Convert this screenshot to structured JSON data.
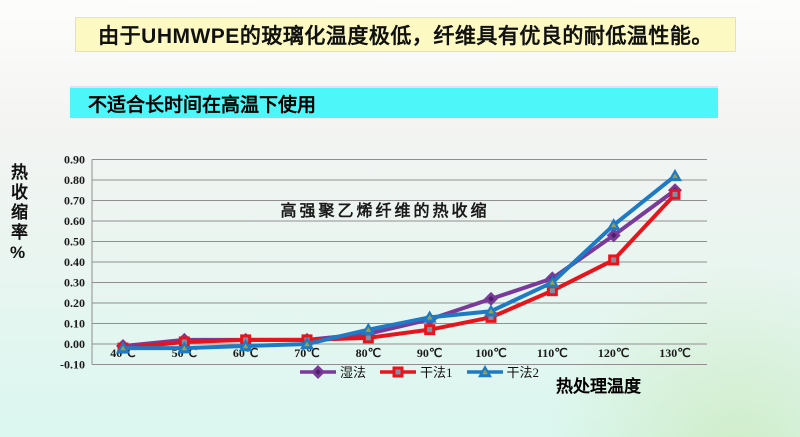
{
  "slide": {
    "title_banner": {
      "text": "由于UHMWPE的玻璃化温度极低，纤维具有优良的耐低温性能。",
      "bg": "#FCFAC2"
    },
    "subtitle_banner": {
      "text": "不适合长时间在高温下使用",
      "bg": "#4DF6F8"
    }
  },
  "chart_data": {
    "type": "line",
    "title": "高强聚乙烯纤维的热收缩",
    "xlabel": "热处理温度",
    "ylabel": "热收缩率%",
    "categories": [
      "40℃",
      "50℃",
      "60℃",
      "70℃",
      "80℃",
      "90℃",
      "100℃",
      "110℃",
      "120℃",
      "130℃"
    ],
    "ylim": [
      -0.1,
      0.9
    ],
    "ytick_step": 0.1,
    "ytick_labels": [
      "-0.10",
      "0.00",
      "0.10",
      "0.20",
      "0.30",
      "0.40",
      "0.50",
      "0.60",
      "0.70",
      "0.80",
      "0.90"
    ],
    "grid": true,
    "grid_color": "#8f8f8f",
    "legend_position": "bottom",
    "series": [
      {
        "name": "湿法",
        "color": "#7A3A9B",
        "marker": "diamond",
        "values": [
          -0.01,
          0.02,
          0.02,
          0.02,
          0.05,
          0.12,
          0.22,
          0.32,
          0.53,
          0.75
        ]
      },
      {
        "name": "干法1",
        "color": "#E8141C",
        "marker": "square",
        "values": [
          -0.02,
          0.01,
          0.02,
          0.02,
          0.03,
          0.07,
          0.13,
          0.26,
          0.41,
          0.73
        ]
      },
      {
        "name": "干法2",
        "color": "#1F7AC4",
        "marker": "triangle",
        "values": [
          -0.02,
          -0.02,
          -0.01,
          0.0,
          0.07,
          0.13,
          0.16,
          0.3,
          0.58,
          0.82
        ]
      }
    ]
  }
}
